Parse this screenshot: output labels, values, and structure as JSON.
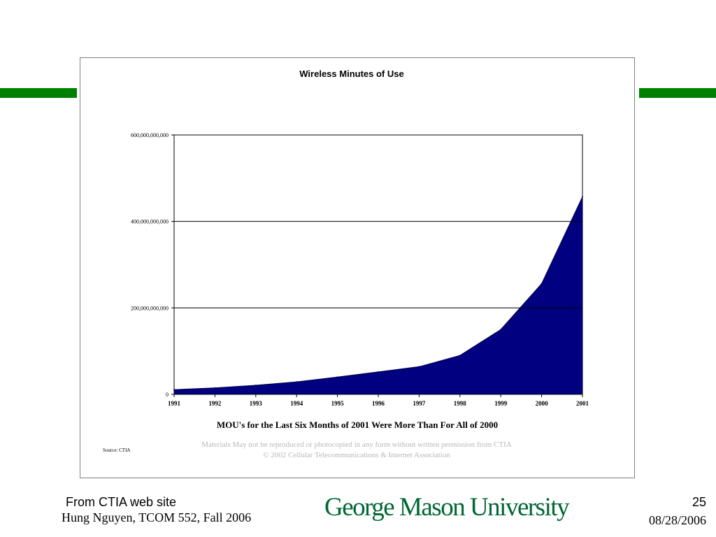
{
  "colors": {
    "accent_bar": "#008000",
    "area_fill": "#000080",
    "university_text": "#006633",
    "muted_text": "#b8b8b8"
  },
  "chart_data": {
    "type": "area",
    "title": "Wireless Minutes of Use",
    "x": [
      "1991",
      "1992",
      "1993",
      "1994",
      "1995",
      "1996",
      "1997",
      "1998",
      "1999",
      "2000",
      "2001"
    ],
    "series": [
      {
        "values": [
          11000000000,
          15000000000,
          21000000000,
          29000000000,
          40000000000,
          52000000000,
          64000000000,
          90000000000,
          150000000000,
          256000000000,
          457000000000
        ]
      }
    ],
    "ylim": [
      0,
      600000000000
    ],
    "yticks": [
      {
        "value": 0,
        "label": "0"
      },
      {
        "value": 200000000000,
        "label": "200,000,000,000"
      },
      {
        "value": 400000000000,
        "label": "400,000,000,000"
      },
      {
        "value": 600000000000,
        "label": "600,000,000,000"
      }
    ],
    "grid": true,
    "annotation": "MOU's for the Last Six Months of 2001 Were More Than For All of 2000",
    "source": "Source: CTIA",
    "disclaimer_line1": "Materials May not be reproduced or photocopied in any form without written permission from CTIA",
    "disclaimer_line2": "© 2002 Cellular Telecommunications & Internet Association"
  },
  "footer": {
    "note": "From CTIA web site",
    "author": "Hung Nguyen, TCOM 552, Fall 2006",
    "university": "George Mason University",
    "page_number": "25",
    "date": "08/28/2006"
  }
}
